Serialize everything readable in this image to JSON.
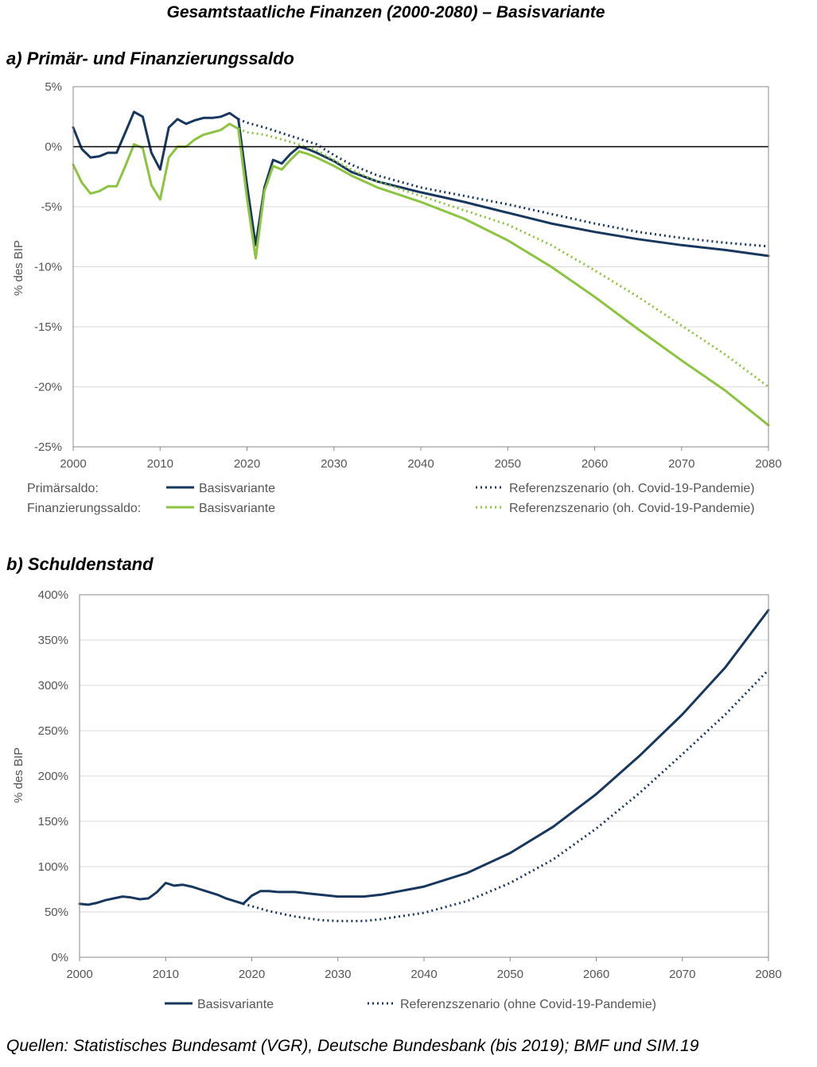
{
  "page": {
    "title": "Gesamtstaatliche Finanzen (2000-2080) – Basisvariante",
    "source": "Quellen: Statistisches Bundesamt (VGR), Deutsche Bundesbank (bis 2019); BMF und SIM.19"
  },
  "colors": {
    "navy": "#17375e",
    "green": "#8cc43f",
    "grid": "#d9d9d9",
    "zero": "#000000"
  },
  "chart_data": [
    {
      "id": "a",
      "panel_title": "a) Primär- und Finanzierungssaldo",
      "type": "line",
      "ylabel": "% des BIP",
      "xlim": [
        2000,
        2080
      ],
      "ylim": [
        -25,
        5
      ],
      "xticks": [
        2000,
        2010,
        2020,
        2030,
        2040,
        2050,
        2060,
        2070,
        2080
      ],
      "yticks": [
        -25,
        -20,
        -15,
        -10,
        -5,
        0,
        5
      ],
      "xtick_labels": [
        "2000",
        "2010",
        "2020",
        "2030",
        "2040",
        "2050",
        "2060",
        "2070",
        "2080"
      ],
      "ytick_labels": [
        "-25%",
        "-20%",
        "-15%",
        "-10%",
        "-5%",
        "0%",
        "5%"
      ],
      "grid": true,
      "legend_position": "bottom",
      "legend_rows": [
        {
          "label": "Primärsaldo:",
          "items": [
            "Basisvariante",
            "Referenzszenario (oh. Covid-19-Pandemie)"
          ]
        },
        {
          "label": "Finanzierungssaldo:",
          "items": [
            "Basisvariante",
            "Referenzszenario (oh. Covid-19-Pandemie)"
          ]
        }
      ],
      "series": [
        {
          "name": "Basisvariante",
          "group": "Primärsaldo",
          "color": "#17375e",
          "style": "solid",
          "x": [
            2000,
            2001,
            2002,
            2003,
            2004,
            2005,
            2006,
            2007,
            2008,
            2009,
            2010,
            2011,
            2012,
            2013,
            2014,
            2015,
            2016,
            2017,
            2018,
            2019,
            2020,
            2021,
            2022,
            2023,
            2024,
            2025,
            2026,
            2027,
            2028,
            2030,
            2032,
            2035,
            2040,
            2045,
            2050,
            2055,
            2060,
            2065,
            2070,
            2075,
            2080
          ],
          "y": [
            1.6,
            -0.2,
            -0.9,
            -0.8,
            -0.5,
            -0.5,
            1.2,
            2.9,
            2.5,
            -0.5,
            -1.9,
            1.6,
            2.3,
            1.9,
            2.2,
            2.4,
            2.4,
            2.5,
            2.8,
            2.3,
            -3.2,
            -8.2,
            -3.4,
            -1.1,
            -1.4,
            -0.6,
            0.0,
            -0.2,
            -0.5,
            -1.2,
            -2.1,
            -2.9,
            -3.8,
            -4.6,
            -5.5,
            -6.4,
            -7.1,
            -7.7,
            -8.2,
            -8.6,
            -9.1
          ]
        },
        {
          "name": "Referenzszenario (oh. Covid-19-Pandemie)",
          "group": "Primärsaldo",
          "color": "#17375e",
          "style": "dotted",
          "x": [
            2019,
            2020,
            2022,
            2025,
            2028,
            2030,
            2032,
            2035,
            2040,
            2045,
            2050,
            2055,
            2060,
            2065,
            2070,
            2075,
            2080
          ],
          "y": [
            2.3,
            2.0,
            1.6,
            0.9,
            0.2,
            -0.7,
            -1.5,
            -2.4,
            -3.4,
            -4.1,
            -4.8,
            -5.6,
            -6.4,
            -7.1,
            -7.6,
            -8.0,
            -8.3
          ]
        },
        {
          "name": "Basisvariante",
          "group": "Finanzierungssaldo",
          "color": "#8cc43f",
          "style": "solid",
          "x": [
            2000,
            2001,
            2002,
            2003,
            2004,
            2005,
            2006,
            2007,
            2008,
            2009,
            2010,
            2011,
            2012,
            2013,
            2014,
            2015,
            2016,
            2017,
            2018,
            2019,
            2020,
            2021,
            2022,
            2023,
            2024,
            2025,
            2026,
            2027,
            2028,
            2030,
            2032,
            2035,
            2040,
            2045,
            2050,
            2055,
            2060,
            2065,
            2070,
            2075,
            2080
          ],
          "y": [
            -1.5,
            -3.0,
            -3.9,
            -3.7,
            -3.3,
            -3.3,
            -1.6,
            0.2,
            -0.1,
            -3.2,
            -4.4,
            -0.9,
            0.0,
            0.0,
            0.6,
            1.0,
            1.2,
            1.4,
            1.9,
            1.5,
            -4.3,
            -9.3,
            -3.7,
            -1.6,
            -1.9,
            -1.1,
            -0.4,
            -0.6,
            -0.9,
            -1.6,
            -2.4,
            -3.4,
            -4.6,
            -6.0,
            -7.8,
            -10.0,
            -12.5,
            -15.2,
            -17.8,
            -20.3,
            -23.2
          ]
        },
        {
          "name": "Referenzszenario (oh. Covid-19-Pandemie)",
          "group": "Finanzierungssaldo",
          "color": "#8cc43f",
          "style": "dotted",
          "x": [
            2019,
            2020,
            2022,
            2025,
            2028,
            2030,
            2032,
            2035,
            2040,
            2045,
            2050,
            2055,
            2060,
            2065,
            2070,
            2075,
            2080
          ],
          "y": [
            1.5,
            1.2,
            1.0,
            0.4,
            -0.3,
            -1.1,
            -1.9,
            -2.9,
            -4.1,
            -5.3,
            -6.5,
            -8.2,
            -10.3,
            -12.5,
            -14.9,
            -17.3,
            -20.0
          ]
        }
      ]
    },
    {
      "id": "b",
      "panel_title": "b) Schuldenstand",
      "type": "line",
      "ylabel": "% des BIP",
      "xlim": [
        2000,
        2080
      ],
      "ylim": [
        0,
        400
      ],
      "xticks": [
        2000,
        2010,
        2020,
        2030,
        2040,
        2050,
        2060,
        2070,
        2080
      ],
      "yticks": [
        0,
        50,
        100,
        150,
        200,
        250,
        300,
        350,
        400
      ],
      "xtick_labels": [
        "2000",
        "2010",
        "2020",
        "2030",
        "2040",
        "2050",
        "2060",
        "2070",
        "2080"
      ],
      "ytick_labels": [
        "0%",
        "50%",
        "100%",
        "150%",
        "200%",
        "250%",
        "300%",
        "350%",
        "400%"
      ],
      "grid": true,
      "legend_position": "bottom",
      "series": [
        {
          "name": "Basisvariante",
          "color": "#17375e",
          "style": "solid",
          "x": [
            2000,
            2001,
            2002,
            2003,
            2004,
            2005,
            2006,
            2007,
            2008,
            2009,
            2010,
            2011,
            2012,
            2013,
            2014,
            2015,
            2016,
            2017,
            2018,
            2019,
            2020,
            2021,
            2022,
            2023,
            2024,
            2025,
            2027,
            2030,
            2033,
            2035,
            2040,
            2045,
            2050,
            2055,
            2060,
            2065,
            2070,
            2075,
            2080
          ],
          "y": [
            59,
            58,
            60,
            63,
            65,
            67,
            66,
            64,
            65,
            72,
            82,
            79,
            80,
            78,
            75,
            72,
            69,
            65,
            62,
            59,
            68,
            73,
            73,
            72,
            72,
            72,
            70,
            67,
            67,
            69,
            78,
            93,
            115,
            144,
            180,
            222,
            268,
            320,
            383
          ]
        },
        {
          "name": "Referenzszenario (ohne Covid-19-Pandemie)",
          "color": "#17375e",
          "style": "dotted",
          "x": [
            2019,
            2022,
            2025,
            2028,
            2030,
            2033,
            2035,
            2040,
            2045,
            2050,
            2055,
            2060,
            2065,
            2070,
            2075,
            2080
          ],
          "y": [
            59,
            51,
            45,
            41,
            40,
            40,
            42,
            49,
            62,
            82,
            108,
            142,
            181,
            224,
            268,
            317
          ]
        }
      ]
    }
  ]
}
